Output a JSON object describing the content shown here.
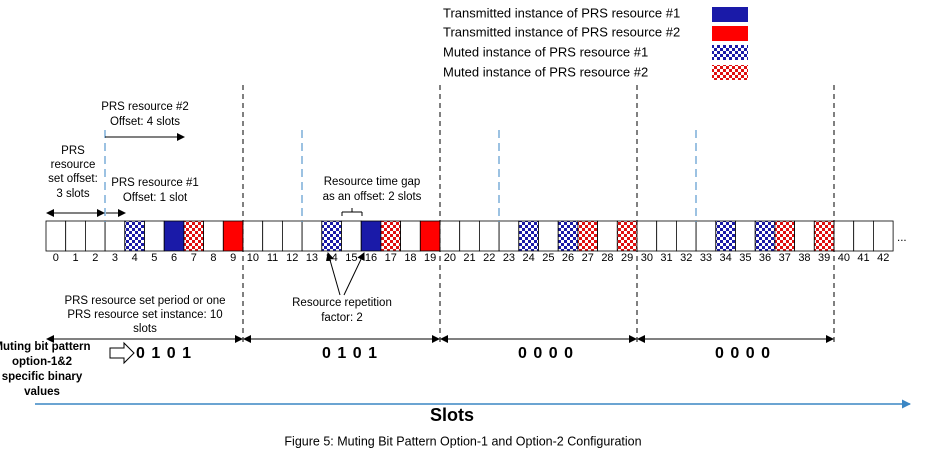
{
  "legend": [
    "Transmitted instance of PRS resource #1",
    "Transmitted instance of PRS resource #2",
    "Muted instance of PRS resource #1",
    "Muted instance of PRS resource #2"
  ],
  "slot_labels": [
    0,
    1,
    2,
    3,
    4,
    5,
    6,
    7,
    8,
    9,
    10,
    11,
    12,
    13,
    14,
    15,
    16,
    17,
    18,
    19,
    20,
    21,
    22,
    23,
    24,
    25,
    26,
    27,
    28,
    29,
    30,
    31,
    32,
    33,
    34,
    35,
    36,
    37,
    38,
    39,
    40,
    41,
    42
  ],
  "ellipsis": "...",
  "annotations": {
    "resource2_offset": [
      "PRS resource #2",
      "Offset: 4 slots"
    ],
    "set_offset": [
      "PRS",
      "resource",
      "set offset:",
      "3 slots"
    ],
    "resource1_offset": [
      "PRS resource #1",
      "Offset: 1 slot"
    ],
    "time_gap": [
      "Resource time gap",
      "as an offset: 2 slots"
    ],
    "repetition": [
      "Resource repetition",
      "factor: 2"
    ],
    "period": [
      "PRS resource set period or one",
      "PRS resource set instance: 10",
      "slots"
    ]
  },
  "bit_pattern": {
    "label": [
      "Muting bit pattern",
      "option-1&2",
      "specific binary",
      "values"
    ],
    "values": [
      "0 1 0 1",
      "0 1 0 1",
      "0 0 0 0",
      "0 0 0 0"
    ]
  },
  "axis_label": "Slots",
  "caption": "Figure 5: Muting Bit Pattern Option-1 and Option-2 Configuration"
}
